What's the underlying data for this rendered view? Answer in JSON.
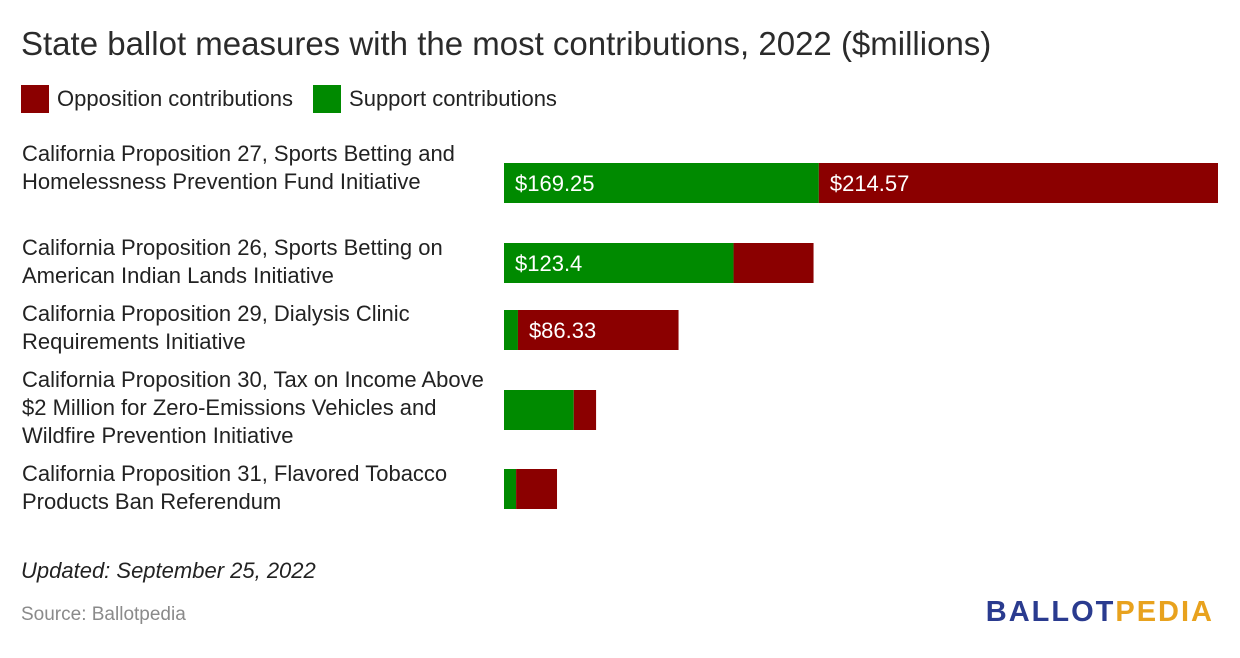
{
  "chart_data": {
    "type": "bar",
    "orientation": "horizontal",
    "stacked": true,
    "title": "State ballot measures with the most contributions, 2022 ($millions)",
    "categories": [
      "California Proposition 27, Sports Betting and Homelessness Prevention Fund Initiative",
      "California Proposition 26, Sports Betting on American Indian Lands Initiative",
      "California Proposition 29, Dialysis Clinic Requirements Initiative",
      "California Proposition 30, Tax on Income Above $2 Million for Zero-Emissions Vehicles and Wildfire Prevention Initiative",
      "California Proposition 31, Flavored Tobacco Products Ban Referendum"
    ],
    "series": [
      {
        "name": "Support contributions",
        "color": "#008a00",
        "values": [
          169.25,
          123.4,
          7.5,
          37.5,
          6.5
        ]
      },
      {
        "name": "Opposition contributions",
        "color": "#8b0000",
        "values": [
          214.57,
          43.0,
          86.33,
          12.0,
          22.0
        ]
      }
    ],
    "data_labels": [
      [
        "$169.25",
        "$214.57"
      ],
      [
        "$123.4",
        ""
      ],
      [
        "",
        "$86.33"
      ],
      [
        "",
        ""
      ],
      [
        "",
        ""
      ]
    ],
    "legend": {
      "placement": "top-left",
      "items": [
        {
          "label": "Opposition contributions",
          "color": "#8b0000"
        },
        {
          "label": "Support contributions",
          "color": "#008a00"
        }
      ]
    },
    "xlim": [
      0,
      383.82
    ],
    "grid": false
  },
  "footer": {
    "updated": "Updated: September 25, 2022",
    "source": "Source: Ballotpedia",
    "logo_part1": "BALLOT",
    "logo_part2": "PEDIA"
  }
}
